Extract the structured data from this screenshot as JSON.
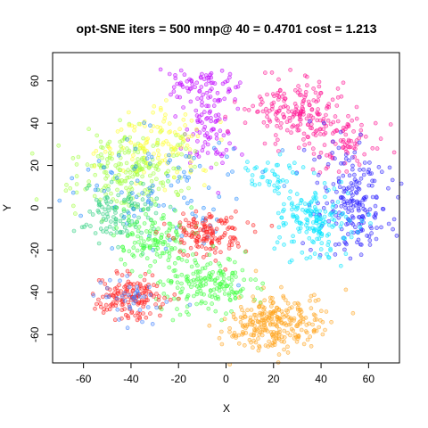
{
  "chart_data": {
    "type": "scatter",
    "title": "opt-SNE iters = 500 mnp@ 40 = 0.4701 cost = 1.213",
    "xlabel": "X",
    "ylabel": "Y",
    "xlim": [
      -70,
      70
    ],
    "ylim": [
      -70,
      70
    ],
    "xticks": [
      -60,
      -40,
      -20,
      0,
      20,
      40,
      60
    ],
    "yticks": [
      -60,
      -40,
      -20,
      0,
      20,
      40,
      60
    ],
    "marker": "open circle",
    "grid": false,
    "legend": "none",
    "clusters": [
      {
        "color": "#c000ff",
        "cx": -12,
        "cy": 57,
        "sx": 8,
        "sy": 5,
        "n": 70
      },
      {
        "color": "#c000ff",
        "cx": -8,
        "cy": 36,
        "sx": 5,
        "sy": 8,
        "n": 80
      },
      {
        "color": "#ff1493",
        "cx": 30,
        "cy": 46,
        "sx": 10,
        "sy": 7,
        "n": 180
      },
      {
        "color": "#ff1493",
        "cx": 50,
        "cy": 30,
        "sx": 7,
        "sy": 7,
        "n": 80
      },
      {
        "color": "#2a1fff",
        "cx": 54,
        "cy": 2,
        "sx": 8,
        "sy": 12,
        "n": 200
      },
      {
        "color": "#00e5ff",
        "cx": 38,
        "cy": -5,
        "sx": 9,
        "sy": 9,
        "n": 170
      },
      {
        "color": "#00e5ff",
        "cx": 20,
        "cy": 15,
        "sx": 7,
        "sy": 4,
        "n": 40
      },
      {
        "color": "#a0ff40",
        "cx": -40,
        "cy": 18,
        "sx": 12,
        "sy": 9,
        "n": 220
      },
      {
        "color": "#ffff33",
        "cx": -28,
        "cy": 30,
        "sx": 10,
        "sy": 8,
        "n": 110
      },
      {
        "color": "#30d080",
        "cx": -45,
        "cy": -2,
        "sx": 8,
        "sy": 8,
        "n": 110
      },
      {
        "color": "#1e88ff",
        "cx": -30,
        "cy": 10,
        "sx": 18,
        "sy": 14,
        "n": 100
      },
      {
        "color": "#40ff40",
        "cx": -30,
        "cy": -15,
        "sx": 8,
        "sy": 8,
        "n": 130
      },
      {
        "color": "#ff2020",
        "cx": -8,
        "cy": -12,
        "sx": 8,
        "sy": 5,
        "n": 140
      },
      {
        "color": "#40ff40",
        "cx": -8,
        "cy": -36,
        "sx": 10,
        "sy": 7,
        "n": 170
      },
      {
        "color": "#ff2020",
        "cx": -40,
        "cy": -42,
        "sx": 7,
        "sy": 5,
        "n": 150
      },
      {
        "color": "#4080ff",
        "cx": -40,
        "cy": -42,
        "sx": 8,
        "sy": 6,
        "n": 40
      },
      {
        "color": "#ffa520",
        "cx": 22,
        "cy": -53,
        "sx": 9,
        "sy": 7,
        "n": 240
      },
      {
        "color": "#ffa520",
        "cx": 10,
        "cy": -58,
        "sx": 7,
        "sy": 4,
        "n": 40
      }
    ]
  }
}
